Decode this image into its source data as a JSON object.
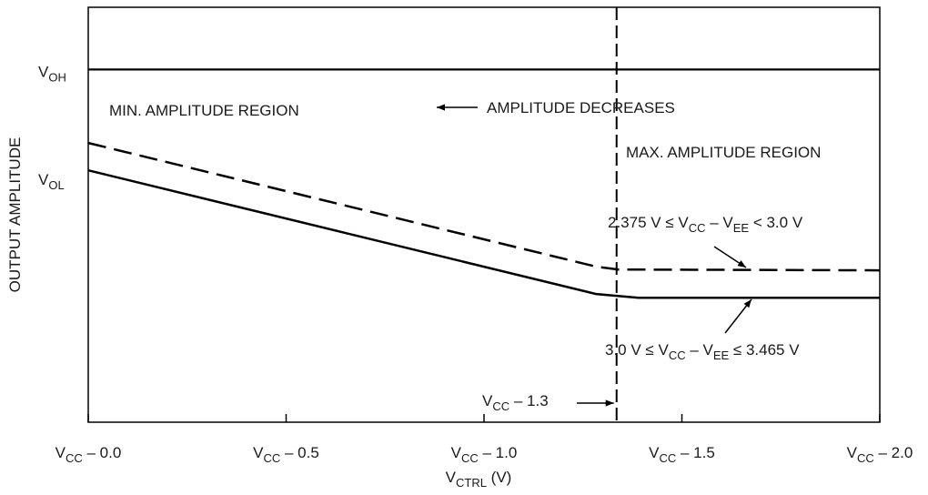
{
  "chart_data": {
    "type": "line",
    "y_label": "OUTPUT AMPLITUDE",
    "x_label": [
      "V",
      "CTRL",
      " (V)"
    ],
    "xlim": [
      0,
      2.0
    ],
    "xticks": [
      {
        "value": 0,
        "label": [
          "V",
          "CC",
          " – 0.0"
        ]
      },
      {
        "value": 0.5,
        "label": [
          "V",
          "CC",
          " – 0.5"
        ]
      },
      {
        "value": 1.0,
        "label": [
          "V",
          "CC",
          " – 1.0"
        ]
      },
      {
        "value": 1.5,
        "label": [
          "V",
          "CC",
          " – 1.5"
        ]
      },
      {
        "value": 2.0,
        "label": [
          "V",
          "CC",
          " – 2.0"
        ]
      }
    ],
    "ylim": [
      0,
      100
    ],
    "yticks": [
      {
        "value": 85,
        "label": [
          "V",
          "OH"
        ],
        "line": true
      },
      {
        "value": 59,
        "label": [
          "V",
          "OL"
        ],
        "line": false
      }
    ],
    "vline": {
      "value": 1.335,
      "label": [
        "V",
        "CC",
        " – 1.3"
      ]
    },
    "series": [
      {
        "name": [
          "2.375 V ≤ V",
          "CC",
          " – V",
          "EE",
          " < 3.0 V"
        ],
        "color": "#000000",
        "dash": true,
        "x": [
          0,
          1.283,
          1.34,
          2.0
        ],
        "values": [
          67.3,
          37.5,
          36.8,
          36.6
        ]
      },
      {
        "name": [
          "3.0 V ≤ V",
          "CC",
          " – V",
          "EE",
          " ≤ 3.465 V"
        ],
        "color": "#000000",
        "dash": false,
        "x": [
          0,
          1.283,
          1.39,
          2.0
        ],
        "values": [
          60.7,
          30.9,
          30.0,
          30.0
        ]
      }
    ],
    "annotations": [
      [
        "MIN. AMPLITUDE REGION"
      ],
      [
        "AMPLITUDE DECREASES"
      ],
      [
        "MAX. AMPLITUDE REGION"
      ]
    ]
  }
}
